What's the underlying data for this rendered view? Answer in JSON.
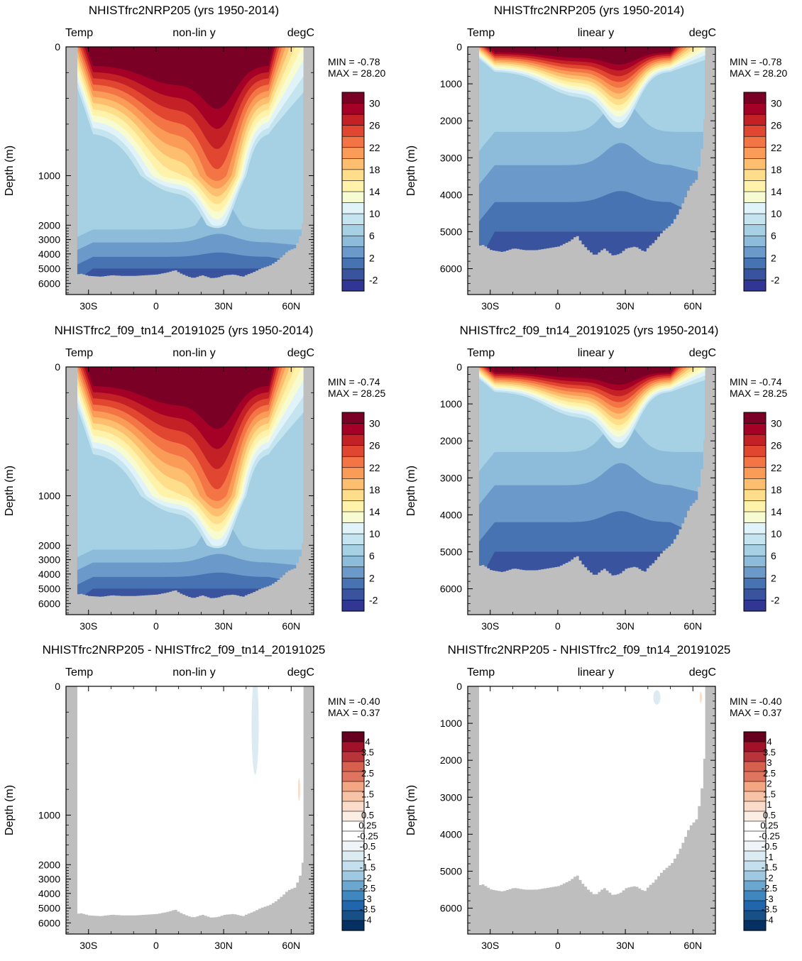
{
  "figure": {
    "ocean_fill": "#ffffff",
    "land_color": "#bebebe",
    "temp_palette": [
      "#313695",
      "#3a539e",
      "#4773b2",
      "#6b99c9",
      "#8dbcdb",
      "#a6d0e4",
      "#c4e4ef",
      "#e0f3f8",
      "#f7fbd2",
      "#fff3ac",
      "#fede8b",
      "#fdbe70",
      "#fb9b58",
      "#f37444",
      "#e04630",
      "#c42127",
      "#a50026",
      "#7b0025"
    ],
    "diff_palette": [
      "#053061",
      "#174f87",
      "#2166ac",
      "#3f87bf",
      "#6ba7d0",
      "#9ec9e1",
      "#c4dfed",
      "#dceaf2",
      "#eef4f8",
      "#ffffff",
      "#ffffff",
      "#fbeee5",
      "#fbdcca",
      "#f7c2a5",
      "#f4a582",
      "#e0755f",
      "#d6604d",
      "#b8333a",
      "#a11228",
      "#67001f"
    ]
  },
  "chart_data": [
    {
      "type": "contour",
      "title": "NHISTfrc2NRP205 (yrs 1950-2014)",
      "left_label": "Temp",
      "center_label": "non-lin y",
      "right_label": "degC",
      "ylabel": "Depth (m)",
      "yscale": "nonlinear",
      "ylim": [
        6700,
        0
      ],
      "y_ticks": [
        "0",
        "1000",
        "2000",
        "3000",
        "4000",
        "5000",
        "6000"
      ],
      "x_ticks": [
        "30S",
        "0",
        "30N",
        "60N"
      ],
      "xlim": [
        -40,
        70
      ],
      "stats": [
        "MIN =  -0.78",
        "MAX =  28.20"
      ],
      "colorbar_labels": [
        "30",
        "26",
        "22",
        "18",
        "14",
        "10",
        "6",
        "2",
        "-2"
      ],
      "variant": "temp"
    },
    {
      "type": "contour",
      "title": "NHISTfrc2NRP205 (yrs 1950-2014)",
      "left_label": "Temp",
      "center_label": "linear y",
      "right_label": "degC",
      "ylabel": "Depth (m)",
      "yscale": "linear",
      "ylim": [
        6700,
        0
      ],
      "y_ticks": [
        "0",
        "1000",
        "2000",
        "3000",
        "4000",
        "5000",
        "6000"
      ],
      "x_ticks": [
        "30S",
        "0",
        "30N",
        "60N"
      ],
      "xlim": [
        -40,
        70
      ],
      "stats": [
        "MIN =  -0.78",
        "MAX =  28.20"
      ],
      "colorbar_labels": [
        "30",
        "26",
        "22",
        "18",
        "14",
        "10",
        "6",
        "2",
        "-2"
      ],
      "variant": "temp"
    },
    {
      "type": "contour",
      "title": "NHISTfrc2_f09_tn14_20191025 (yrs 1950-2014)",
      "left_label": "Temp",
      "center_label": "non-lin y",
      "right_label": "degC",
      "ylabel": "Depth (m)",
      "yscale": "nonlinear",
      "ylim": [
        6700,
        0
      ],
      "y_ticks": [
        "0",
        "1000",
        "2000",
        "3000",
        "4000",
        "5000",
        "6000"
      ],
      "x_ticks": [
        "30S",
        "0",
        "30N",
        "60N"
      ],
      "xlim": [
        -40,
        70
      ],
      "stats": [
        "MIN =  -0.74",
        "MAX =  28.25"
      ],
      "colorbar_labels": [
        "30",
        "26",
        "22",
        "18",
        "14",
        "10",
        "6",
        "2",
        "-2"
      ],
      "variant": "temp"
    },
    {
      "type": "contour",
      "title": "NHISTfrc2_f09_tn14_20191025 (yrs 1950-2014)",
      "left_label": "Temp",
      "center_label": "linear y",
      "right_label": "degC",
      "ylabel": "Depth (m)",
      "yscale": "linear",
      "ylim": [
        6700,
        0
      ],
      "y_ticks": [
        "0",
        "1000",
        "2000",
        "3000",
        "4000",
        "5000",
        "6000"
      ],
      "x_ticks": [
        "30S",
        "0",
        "30N",
        "60N"
      ],
      "xlim": [
        -40,
        70
      ],
      "stats": [
        "MIN =  -0.74",
        "MAX =  28.25"
      ],
      "colorbar_labels": [
        "30",
        "26",
        "22",
        "18",
        "14",
        "10",
        "6",
        "2",
        "-2"
      ],
      "variant": "temp"
    },
    {
      "type": "contour",
      "title": "NHISTfrc2NRP205 - NHISTfrc2_f09_tn14_20191025",
      "left_label": "Temp",
      "center_label": "non-lin y",
      "right_label": "degC",
      "ylabel": "Depth (m)",
      "yscale": "nonlinear",
      "ylim": [
        6700,
        0
      ],
      "y_ticks": [
        "0",
        "1000",
        "2000",
        "3000",
        "4000",
        "5000",
        "6000"
      ],
      "x_ticks": [
        "30S",
        "0",
        "30N",
        "60N"
      ],
      "xlim": [
        -40,
        70
      ],
      "stats": [
        "MIN =  -0.40",
        "MAX =   0.37"
      ],
      "colorbar_labels": [
        "4",
        "3.5",
        "3",
        "2.5",
        "2",
        "1.5",
        "1",
        "0.5",
        "0.25",
        "-0.25",
        "-0.5",
        "-1",
        "-1.5",
        "-2",
        "-2.5",
        "-3",
        "-3.5",
        "-4"
      ],
      "variant": "diff"
    },
    {
      "type": "contour",
      "title": "NHISTfrc2NRP205 - NHISTfrc2_f09_tn14_20191025",
      "left_label": "Temp",
      "center_label": "linear y",
      "right_label": "degC",
      "ylabel": "Depth (m)",
      "yscale": "linear",
      "ylim": [
        6700,
        0
      ],
      "y_ticks": [
        "0",
        "1000",
        "2000",
        "3000",
        "4000",
        "5000",
        "6000"
      ],
      "x_ticks": [
        "30S",
        "0",
        "30N",
        "60N"
      ],
      "xlim": [
        -40,
        70
      ],
      "stats": [
        "MIN =  -0.40",
        "MAX =   0.37"
      ],
      "colorbar_labels": [
        "4",
        "3.5",
        "3",
        "2.5",
        "2",
        "1.5",
        "1",
        "0.5",
        "0.25",
        "-0.25",
        "-0.5",
        "-1",
        "-1.5",
        "-2",
        "-2.5",
        "-3",
        "-3.5",
        "-4"
      ],
      "variant": "diff"
    }
  ]
}
